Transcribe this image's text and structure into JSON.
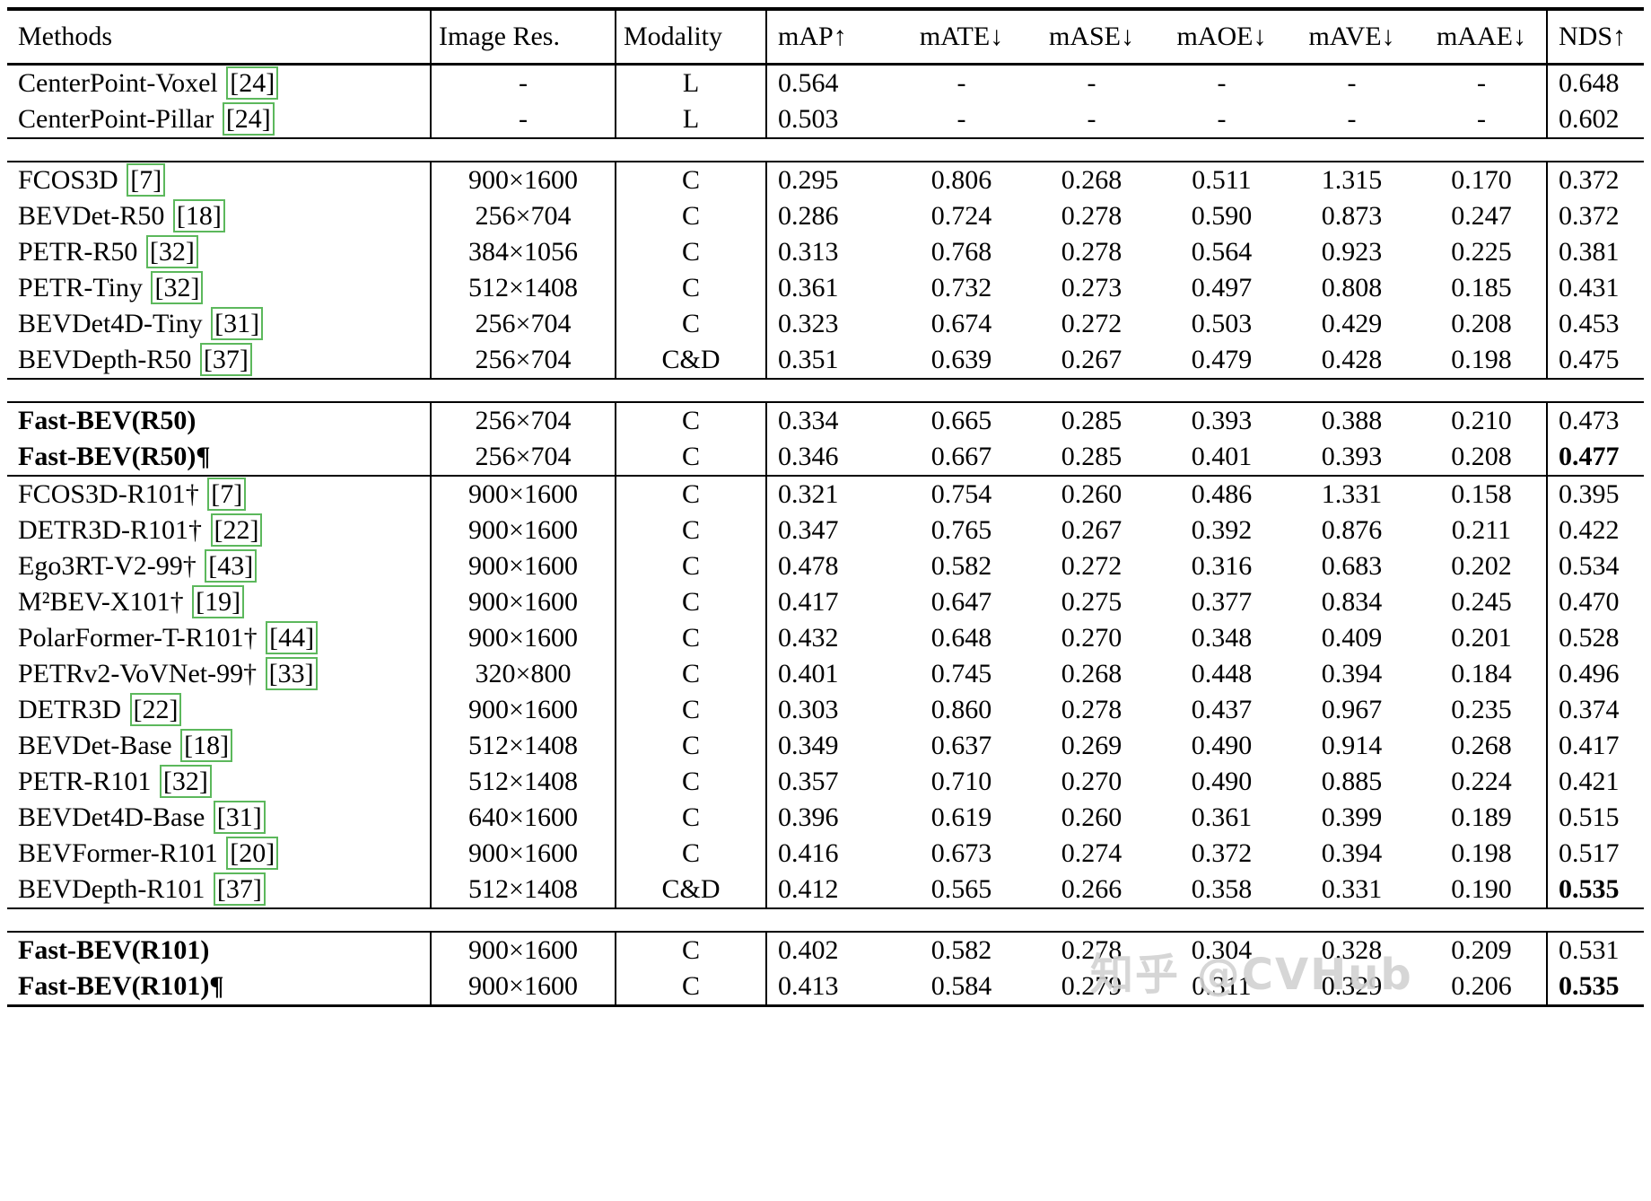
{
  "header": {
    "columns": [
      "Methods",
      "Image Res.",
      "Modality",
      "mAP↑",
      "mATE↓",
      "mASE↓",
      "mAOE↓",
      "mAVE↓",
      "mAAE↓",
      "NDS↑"
    ]
  },
  "sections": [
    {
      "id": "lidar-baselines",
      "sep_after": "gap",
      "rows": [
        {
          "method": "CenterPoint-Voxel",
          "cite": "[24]",
          "res": "-",
          "mod": "L",
          "vals": [
            "0.564",
            "-",
            "-",
            "-",
            "-",
            "-"
          ],
          "nds": "0.648"
        },
        {
          "method": "CenterPoint-Pillar",
          "cite": "[24]",
          "res": "-",
          "mod": "L",
          "vals": [
            "0.503",
            "-",
            "-",
            "-",
            "-",
            "-"
          ],
          "nds": "0.602"
        }
      ]
    },
    {
      "id": "camera-small-backbone",
      "sep_after": "gap",
      "rows": [
        {
          "method": "FCOS3D",
          "cite": "[7]",
          "res": "900×1600",
          "mod": "C",
          "vals": [
            "0.295",
            "0.806",
            "0.268",
            "0.511",
            "1.315",
            "0.170"
          ],
          "nds": "0.372"
        },
        {
          "method": "BEVDet-R50",
          "cite": "[18]",
          "res": "256×704",
          "mod": "C",
          "vals": [
            "0.286",
            "0.724",
            "0.278",
            "0.590",
            "0.873",
            "0.247"
          ],
          "nds": "0.372"
        },
        {
          "method": "PETR-R50",
          "cite": "[32]",
          "res": "384×1056",
          "mod": "C",
          "vals": [
            "0.313",
            "0.768",
            "0.278",
            "0.564",
            "0.923",
            "0.225"
          ],
          "nds": "0.381"
        },
        {
          "method": "PETR-Tiny",
          "cite": "[32]",
          "res": "512×1408",
          "mod": "C",
          "vals": [
            "0.361",
            "0.732",
            "0.273",
            "0.497",
            "0.808",
            "0.185"
          ],
          "nds": "0.431"
        },
        {
          "method": "BEVDet4D-Tiny",
          "cite": "[31]",
          "res": "256×704",
          "mod": "C",
          "vals": [
            "0.323",
            "0.674",
            "0.272",
            "0.503",
            "0.429",
            "0.208"
          ],
          "nds": "0.453"
        },
        {
          "method": "BEVDepth-R50",
          "cite": "[37]",
          "res": "256×704",
          "mod": "C&D",
          "vals": [
            "0.351",
            "0.639",
            "0.267",
            "0.479",
            "0.428",
            "0.198"
          ],
          "nds": "0.475"
        }
      ]
    },
    {
      "id": "fast-bev-r50",
      "sep_after": "line",
      "rows": [
        {
          "method": "Fast-BEV(R50)",
          "bold": true,
          "res": "256×704",
          "mod": "C",
          "vals": [
            "0.334",
            "0.665",
            "0.285",
            "0.393",
            "0.388",
            "0.210"
          ],
          "nds": "0.473"
        },
        {
          "method": "Fast-BEV(R50)¶",
          "bold": true,
          "res": "256×704",
          "mod": "C",
          "vals": [
            "0.346",
            "0.667",
            "0.285",
            "0.401",
            "0.393",
            "0.208"
          ],
          "nds": "0.477",
          "nds_bold": true
        }
      ]
    },
    {
      "id": "camera-large-backbone",
      "sep_after": "gap",
      "rows": [
        {
          "method": "FCOS3D-R101†",
          "cite": "[7]",
          "res": "900×1600",
          "mod": "C",
          "vals": [
            "0.321",
            "0.754",
            "0.260",
            "0.486",
            "1.331",
            "0.158"
          ],
          "nds": "0.395"
        },
        {
          "method": "DETR3D-R101†",
          "cite": "[22]",
          "res": "900×1600",
          "mod": "C",
          "vals": [
            "0.347",
            "0.765",
            "0.267",
            "0.392",
            "0.876",
            "0.211"
          ],
          "nds": "0.422"
        },
        {
          "method": "Ego3RT-V2-99†",
          "cite": "[43]",
          "res": "900×1600",
          "mod": "C",
          "vals": [
            "0.478",
            "0.582",
            "0.272",
            "0.316",
            "0.683",
            "0.202"
          ],
          "nds": "0.534"
        },
        {
          "method": "M²BEV-X101†",
          "cite": "[19]",
          "res": "900×1600",
          "mod": "C",
          "vals": [
            "0.417",
            "0.647",
            "0.275",
            "0.377",
            "0.834",
            "0.245"
          ],
          "nds": "0.470"
        },
        {
          "method": "PolarFormer-T-R101†",
          "cite": "[44]",
          "res": "900×1600",
          "mod": "C",
          "vals": [
            "0.432",
            "0.648",
            "0.270",
            "0.348",
            "0.409",
            "0.201"
          ],
          "nds": "0.528"
        },
        {
          "method": "PETRv2-VoVNet-99†",
          "cite": "[33]",
          "res": "320×800",
          "mod": "C",
          "vals": [
            "0.401",
            "0.745",
            "0.268",
            "0.448",
            "0.394",
            "0.184"
          ],
          "nds": "0.496"
        },
        {
          "method": "DETR3D",
          "cite": "[22]",
          "res": "900×1600",
          "mod": "C",
          "vals": [
            "0.303",
            "0.860",
            "0.278",
            "0.437",
            "0.967",
            "0.235"
          ],
          "nds": "0.374"
        },
        {
          "method": "BEVDet-Base",
          "cite": "[18]",
          "res": "512×1408",
          "mod": "C",
          "vals": [
            "0.349",
            "0.637",
            "0.269",
            "0.490",
            "0.914",
            "0.268"
          ],
          "nds": "0.417"
        },
        {
          "method": "PETR-R101",
          "cite": "[32]",
          "res": "512×1408",
          "mod": "C",
          "vals": [
            "0.357",
            "0.710",
            "0.270",
            "0.490",
            "0.885",
            "0.224"
          ],
          "nds": "0.421"
        },
        {
          "method": "BEVDet4D-Base",
          "cite": "[31]",
          "res": "640×1600",
          "mod": "C",
          "vals": [
            "0.396",
            "0.619",
            "0.260",
            "0.361",
            "0.399",
            "0.189"
          ],
          "nds": "0.515"
        },
        {
          "method": "BEVFormer-R101",
          "cite": "[20]",
          "res": "900×1600",
          "mod": "C",
          "vals": [
            "0.416",
            "0.673",
            "0.274",
            "0.372",
            "0.394",
            "0.198"
          ],
          "nds": "0.517"
        },
        {
          "method": "BEVDepth-R101",
          "cite": "[37]",
          "res": "512×1408",
          "mod": "C&D",
          "vals": [
            "0.412",
            "0.565",
            "0.266",
            "0.358",
            "0.331",
            "0.190"
          ],
          "nds": "0.535",
          "nds_bold": true
        }
      ]
    },
    {
      "id": "fast-bev-r101",
      "sep_after": "none",
      "rows": [
        {
          "method": "Fast-BEV(R101)",
          "bold": true,
          "res": "900×1600",
          "mod": "C",
          "vals": [
            "0.402",
            "0.582",
            "0.278",
            "0.304",
            "0.328",
            "0.209"
          ],
          "nds": "0.531"
        },
        {
          "method": "Fast-BEV(R101)¶",
          "bold": true,
          "res": "900×1600",
          "mod": "C",
          "vals": [
            "0.413",
            "0.584",
            "0.279",
            "0.311",
            "0.329",
            "0.206"
          ],
          "nds": "0.535",
          "nds_bold": true
        }
      ]
    }
  ],
  "watermark": {
    "text": "知乎 @CVHub"
  },
  "colors": {
    "citation_border": "#5cb85c",
    "rule": "#000000",
    "watermark": "#d2d2d2"
  }
}
